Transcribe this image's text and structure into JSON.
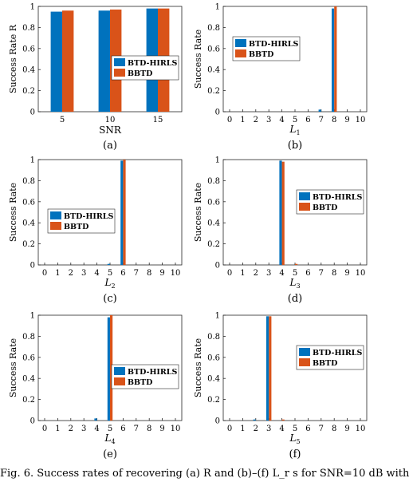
{
  "colors": {
    "BTD-HIRLS": "#0072BD",
    "BBTD": "#D95319"
  },
  "caption": "Fig. 6. Success rates of recovering (a) R and (b)–(f) L_r s for SNR=10 dB with",
  "chart_data": [
    {
      "type": "bar",
      "panel_label": "(a)",
      "xlabel": "SNR",
      "ylabel": "Success Rate R",
      "categories": [
        "5",
        "10",
        "15"
      ],
      "ylim": [
        0,
        1
      ],
      "yticks": [
        "0",
        "0.2",
        "0.4",
        "0.6",
        "0.8",
        "1"
      ],
      "legend": "right-middle",
      "series": [
        {
          "name": "BTD-HIRLS",
          "values": [
            0.95,
            0.96,
            0.98
          ]
        },
        {
          "name": "BBTD",
          "values": [
            0.96,
            0.97,
            0.98
          ]
        }
      ]
    },
    {
      "type": "bar",
      "panel_label": "(b)",
      "xlabel": "L",
      "xlabel_sub": "1",
      "ylabel": "Success Rate",
      "categories": [
        "0",
        "1",
        "2",
        "3",
        "4",
        "5",
        "6",
        "7",
        "8",
        "9",
        "10"
      ],
      "ylim": [
        0,
        1
      ],
      "yticks": [
        "0",
        "0.2",
        "0.4",
        "0.6",
        "0.8",
        "1"
      ],
      "legend": "left-upper",
      "series": [
        {
          "name": "BTD-HIRLS",
          "values": [
            0,
            0,
            0,
            0,
            0,
            0,
            0,
            0.02,
            0.98,
            0,
            0
          ]
        },
        {
          "name": "BBTD",
          "values": [
            0,
            0,
            0,
            0,
            0,
            0,
            0,
            0,
            1.0,
            0,
            0
          ]
        }
      ]
    },
    {
      "type": "bar",
      "panel_label": "(c)",
      "xlabel": "L",
      "xlabel_sub": "2",
      "ylabel": "Success Rate",
      "categories": [
        "0",
        "1",
        "2",
        "3",
        "4",
        "5",
        "6",
        "7",
        "8",
        "9",
        "10"
      ],
      "ylim": [
        0,
        1
      ],
      "yticks": [
        "0",
        "0.2",
        "0.4",
        "0.6",
        "0.8",
        "1"
      ],
      "legend": "left-middle",
      "series": [
        {
          "name": "BTD-HIRLS",
          "values": [
            0,
            0,
            0,
            0,
            0,
            0.01,
            0.99,
            0,
            0,
            0,
            0
          ]
        },
        {
          "name": "BBTD",
          "values": [
            0,
            0,
            0,
            0,
            0,
            0,
            1.0,
            0,
            0,
            0,
            0
          ]
        }
      ]
    },
    {
      "type": "bar",
      "panel_label": "(d)",
      "xlabel": "L",
      "xlabel_sub": "3",
      "ylabel": "Success Rate",
      "categories": [
        "0",
        "1",
        "2",
        "3",
        "4",
        "5",
        "6",
        "7",
        "8",
        "9",
        "10"
      ],
      "ylim": [
        0,
        1
      ],
      "yticks": [
        "0",
        "0.2",
        "0.4",
        "0.6",
        "0.8",
        "1"
      ],
      "legend": "right-upper",
      "series": [
        {
          "name": "BTD-HIRLS",
          "values": [
            0,
            0,
            0,
            0,
            0.99,
            0,
            0,
            0,
            0,
            0,
            0
          ]
        },
        {
          "name": "BBTD",
          "values": [
            0,
            0,
            0,
            0,
            0.98,
            0.01,
            0,
            0,
            0,
            0,
            0
          ]
        }
      ]
    },
    {
      "type": "bar",
      "panel_label": "(e)",
      "xlabel": "L",
      "xlabel_sub": "4",
      "ylabel": "Success Rate",
      "categories": [
        "0",
        "1",
        "2",
        "3",
        "4",
        "5",
        "6",
        "7",
        "8",
        "9",
        "10"
      ],
      "ylim": [
        0,
        1
      ],
      "yticks": [
        "0",
        "0.2",
        "0.4",
        "0.6",
        "0.8",
        "1"
      ],
      "legend": "right-middle",
      "series": [
        {
          "name": "BTD-HIRLS",
          "values": [
            0,
            0,
            0,
            0,
            0.02,
            0.98,
            0,
            0,
            0,
            0,
            0
          ]
        },
        {
          "name": "BBTD",
          "values": [
            0,
            0,
            0,
            0,
            0,
            1.0,
            0,
            0,
            0,
            0,
            0
          ]
        }
      ]
    },
    {
      "type": "bar",
      "panel_label": "(f)",
      "xlabel": "L",
      "xlabel_sub": "5",
      "ylabel": "Success Rate",
      "categories": [
        "0",
        "1",
        "2",
        "3",
        "4",
        "5",
        "6",
        "7",
        "8",
        "9",
        "10"
      ],
      "ylim": [
        0,
        1
      ],
      "yticks": [
        "0",
        "0.2",
        "0.4",
        "0.6",
        "0.8",
        "1"
      ],
      "legend": "right-upper",
      "series": [
        {
          "name": "BTD-HIRLS",
          "values": [
            0,
            0,
            0.01,
            0.99,
            0,
            0,
            0,
            0,
            0,
            0,
            0
          ]
        },
        {
          "name": "BBTD",
          "values": [
            0,
            0,
            0,
            0.99,
            0.01,
            0,
            0,
            0,
            0,
            0,
            0
          ]
        }
      ]
    }
  ]
}
